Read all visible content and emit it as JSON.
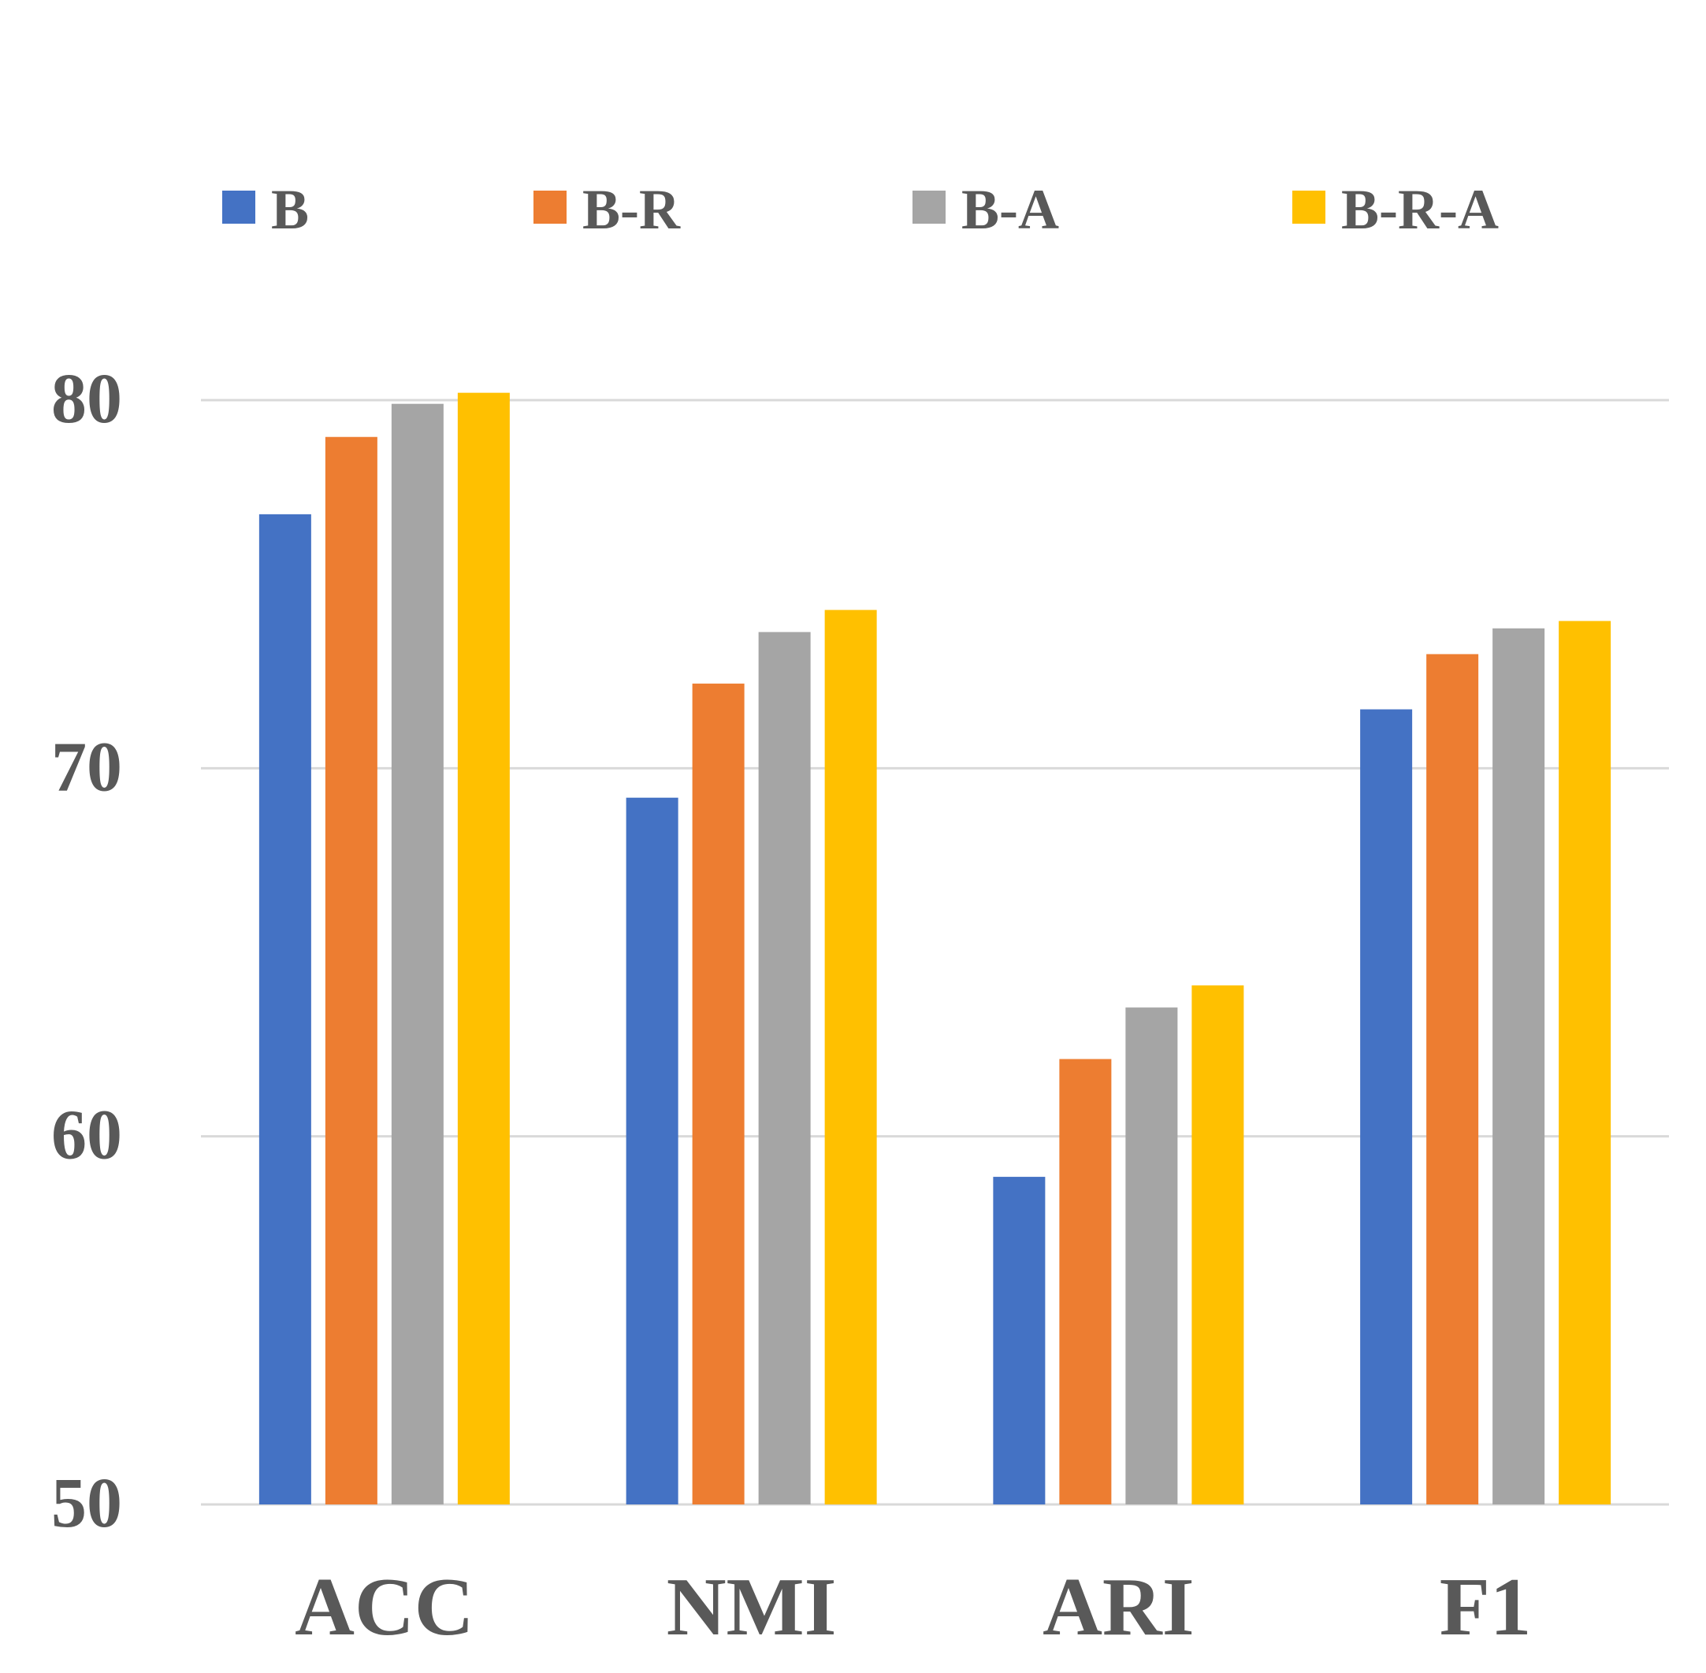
{
  "chart_data": {
    "type": "bar",
    "title": "",
    "xlabel": "",
    "ylabel": "",
    "ylim": [
      50,
      80
    ],
    "yticks": [
      50,
      60,
      70,
      80
    ],
    "grid": true,
    "legend_position": "top",
    "categories": [
      "ACC",
      "NMI",
      "ARI",
      "F1"
    ],
    "series": [
      {
        "name": "B",
        "color": "#4472C4",
        "values": [
          76.9,
          69.2,
          58.9,
          71.6
        ]
      },
      {
        "name": "B-R",
        "color": "#ED7D31",
        "values": [
          79.0,
          72.3,
          62.1,
          73.1
        ]
      },
      {
        "name": "B-A",
        "color": "#A5A5A5",
        "values": [
          79.9,
          73.7,
          63.5,
          73.8
        ]
      },
      {
        "name": "B-R-A",
        "color": "#FFC000",
        "values": [
          80.2,
          74.3,
          64.1,
          74.0
        ]
      }
    ]
  }
}
